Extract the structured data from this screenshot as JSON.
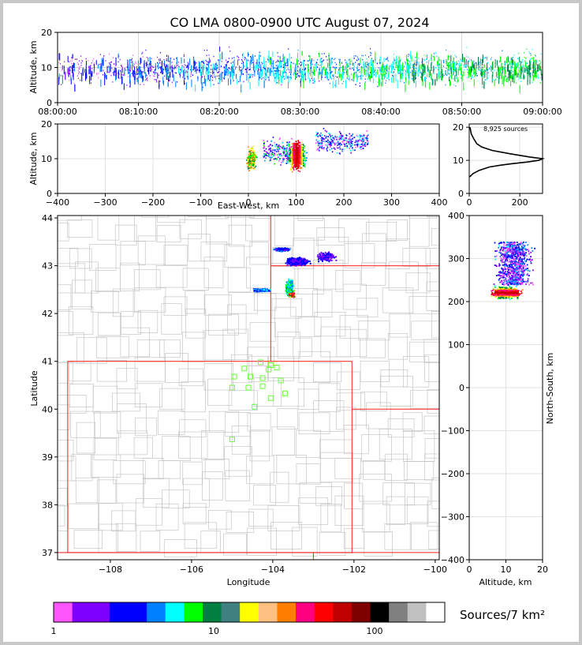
{
  "title": "CO LMA 0800-0900 UTC August 07, 2024",
  "sources_label": "8,925 sources",
  "colorbar": {
    "label": "Sources/7 km²",
    "ticks": [
      "1",
      "10",
      "100"
    ],
    "colors": [
      "#ff55ff",
      "#8000ff",
      "#8000ff",
      "#0000ff",
      "#0000ff",
      "#0080ff",
      "#00ffff",
      "#00ff00",
      "#008040",
      "#408080",
      "#ffff00",
      "#ffc080",
      "#ff8000",
      "#ff0080",
      "#ff0000",
      "#c00000",
      "#800000",
      "#000000",
      "#808080",
      "#c0c0c0",
      "#ffffff"
    ]
  },
  "chart_data": [
    {
      "type": "scatter",
      "panel": "altitude-vs-time",
      "ylabel": "Altitude, km",
      "xlabel": "",
      "x_ticks": [
        "08:00:00",
        "08:10:00",
        "08:20:00",
        "08:30:00",
        "08:40:00",
        "08:50:00",
        "09:00:00"
      ],
      "y_ticks": [
        "0",
        "10",
        "20"
      ],
      "xlim": [
        "08:00:00",
        "09:00:00"
      ],
      "ylim": [
        0,
        20
      ],
      "grid": true,
      "description_of_density": "sources between 5 and 20 km throughout the hour, densest near 10 km after 08:40"
    },
    {
      "type": "scatter",
      "panel": "altitude-vs-east-west",
      "xlabel": "East-West, km",
      "ylabel": "Altitude, km",
      "x_ticks": [
        "−400",
        "−300",
        "−200",
        "−100",
        "0",
        "100",
        "200",
        "300",
        "400"
      ],
      "y_ticks": [
        "0",
        "10",
        "20"
      ],
      "xlim": [
        -400,
        400
      ],
      "ylim": [
        0,
        20
      ],
      "grid": true
    },
    {
      "type": "line",
      "panel": "source-altitude-histogram",
      "x_ticks": [
        "0",
        "200"
      ],
      "y_ticks": [
        "0",
        "10",
        "20"
      ],
      "xlim": [
        0,
        290
      ],
      "ylim": [
        0,
        21
      ],
      "x": [
        2,
        15,
        40,
        80,
        120,
        170,
        230,
        275,
        290,
        240,
        160,
        90,
        50,
        30,
        18,
        8,
        3
      ],
      "y": [
        5,
        6,
        7,
        8,
        8.5,
        9,
        9.5,
        10,
        10.5,
        11,
        12,
        13,
        14,
        15,
        16.5,
        18,
        20
      ],
      "grid": true
    },
    {
      "type": "scatter",
      "panel": "plan-view-map",
      "xlabel": "Longitude",
      "ylabel": "Latitude",
      "x_ticks": [
        "−108",
        "−106",
        "−104",
        "−102",
        "−100"
      ],
      "y_ticks": [
        "37",
        "38",
        "39",
        "40",
        "41",
        "42",
        "43",
        "44"
      ],
      "xlim": [
        -109.3,
        -99.9
      ],
      "ylim": [
        36.85,
        44.05
      ],
      "station_markers": [
        {
          "lon": -104.7,
          "lat": 40.85
        },
        {
          "lon": -104.3,
          "lat": 40.98
        },
        {
          "lon": -104.05,
          "lat": 40.92
        },
        {
          "lon": -103.9,
          "lat": 40.87
        },
        {
          "lon": -104.1,
          "lat": 40.83
        },
        {
          "lon": -104.95,
          "lat": 40.68
        },
        {
          "lon": -104.55,
          "lat": 40.68
        },
        {
          "lon": -104.25,
          "lat": 40.65
        },
        {
          "lon": -103.8,
          "lat": 40.6
        },
        {
          "lon": -105.0,
          "lat": 40.45
        },
        {
          "lon": -104.6,
          "lat": 40.45
        },
        {
          "lon": -104.25,
          "lat": 40.48
        },
        {
          "lon": -103.7,
          "lat": 40.33
        },
        {
          "lon": -104.05,
          "lat": 40.23
        },
        {
          "lon": -104.45,
          "lat": 40.05
        },
        {
          "lon": -105.0,
          "lat": 39.37
        }
      ]
    },
    {
      "type": "scatter",
      "panel": "north-south-vs-altitude",
      "xlabel": "Altitude, km",
      "ylabel": "North-South, km",
      "x_ticks": [
        "0",
        "10",
        "20"
      ],
      "y_ticks": [
        "400",
        "300",
        "200",
        "100",
        "0",
        "−100",
        "−200",
        "−300",
        "−400"
      ],
      "xlim": [
        0,
        20
      ],
      "ylim": [
        -400,
        400
      ],
      "grid": true
    }
  ]
}
